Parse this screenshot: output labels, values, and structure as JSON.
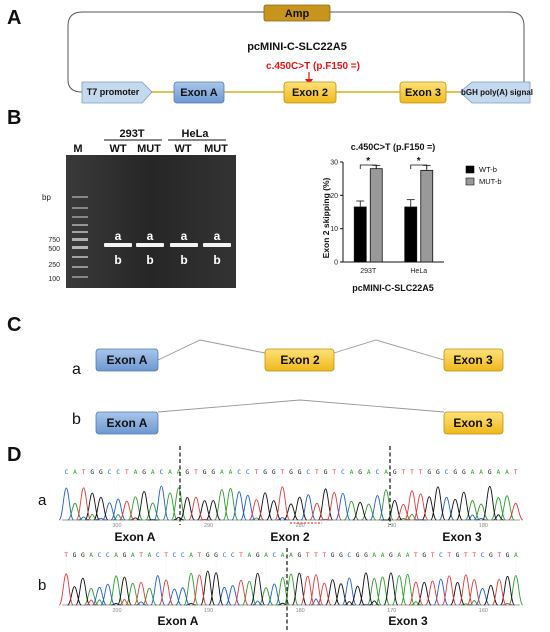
{
  "panels": {
    "a": "A",
    "b": "B",
    "c": "C",
    "d": "D"
  },
  "panelA": {
    "amp": "Amp",
    "plasmid": "pcMINI-C-SLC22A5",
    "mutation": "c.450C>T (p.F150 =)",
    "promoter": "T7 promoter",
    "signal": "bGH poly(A) signal",
    "exonA": "Exon A",
    "exon2": "Exon 2",
    "exon3": "Exon 3",
    "colors": {
      "exonA": "#7da6d9",
      "exon2": "#f2c230",
      "exon3": "#f2c230",
      "arrow": "#c5d9ee",
      "amp": "#c8951c"
    }
  },
  "gel": {
    "marker": "M",
    "bp": "bp",
    "groups": [
      "293T",
      "HeLa"
    ],
    "lanes": [
      "WT",
      "MUT",
      "WT",
      "MUT"
    ],
    "ladder": [
      "750",
      "500",
      "250",
      "100"
    ],
    "bands": [
      "a",
      "b"
    ]
  },
  "chart_data": {
    "type": "bar",
    "title": "c.450C>T (p.F150 =)",
    "ylabel": "Exon 2 skipping (%)",
    "xlabel": "pcMINI-C-SLC22A5",
    "categories": [
      "293T",
      "HeLa"
    ],
    "series": [
      {
        "name": "WT-b",
        "values": [
          16.5,
          16.5
        ],
        "errors": [
          1.8,
          2.2
        ],
        "color": "#000000"
      },
      {
        "name": "MUT-b",
        "values": [
          28,
          27.5
        ],
        "errors": [
          1.0,
          1.5
        ],
        "color": "#999999"
      }
    ],
    "ylim": [
      0,
      30
    ],
    "yticks": [
      "0",
      "10",
      "20",
      "30"
    ],
    "significance": [
      "*",
      "*"
    ],
    "legend": "right"
  },
  "panelC": {
    "rows": [
      "a",
      "b"
    ],
    "exonA": "Exon A",
    "exon2": "Exon 2",
    "exon3": "Exon 3"
  },
  "panelD": {
    "rows": [
      "a",
      "b"
    ],
    "seqA": "CATGGCCTAGACAAGTGGAACCTGGTGGCTGTCAGACAGTTTGGCGGAAGAAT",
    "seqB": "TGGACCAGATACTCCATGGCCTAGACAAGTTTGGCGGAAGAATGTCTGTTCGTGA",
    "numsA": [
      "300",
      "290",
      "280",
      "190",
      "180"
    ],
    "numsB": [
      "200",
      "190",
      "180",
      "170",
      "160"
    ],
    "labelsA": [
      "Exon A",
      "Exon 2",
      "Exon 3"
    ],
    "labelsB": [
      "Exon A",
      "Exon 3"
    ],
    "baseColors": {
      "A": "#2ca02c",
      "C": "#1f5fd6",
      "G": "#111111",
      "T": "#e23b3b"
    }
  }
}
